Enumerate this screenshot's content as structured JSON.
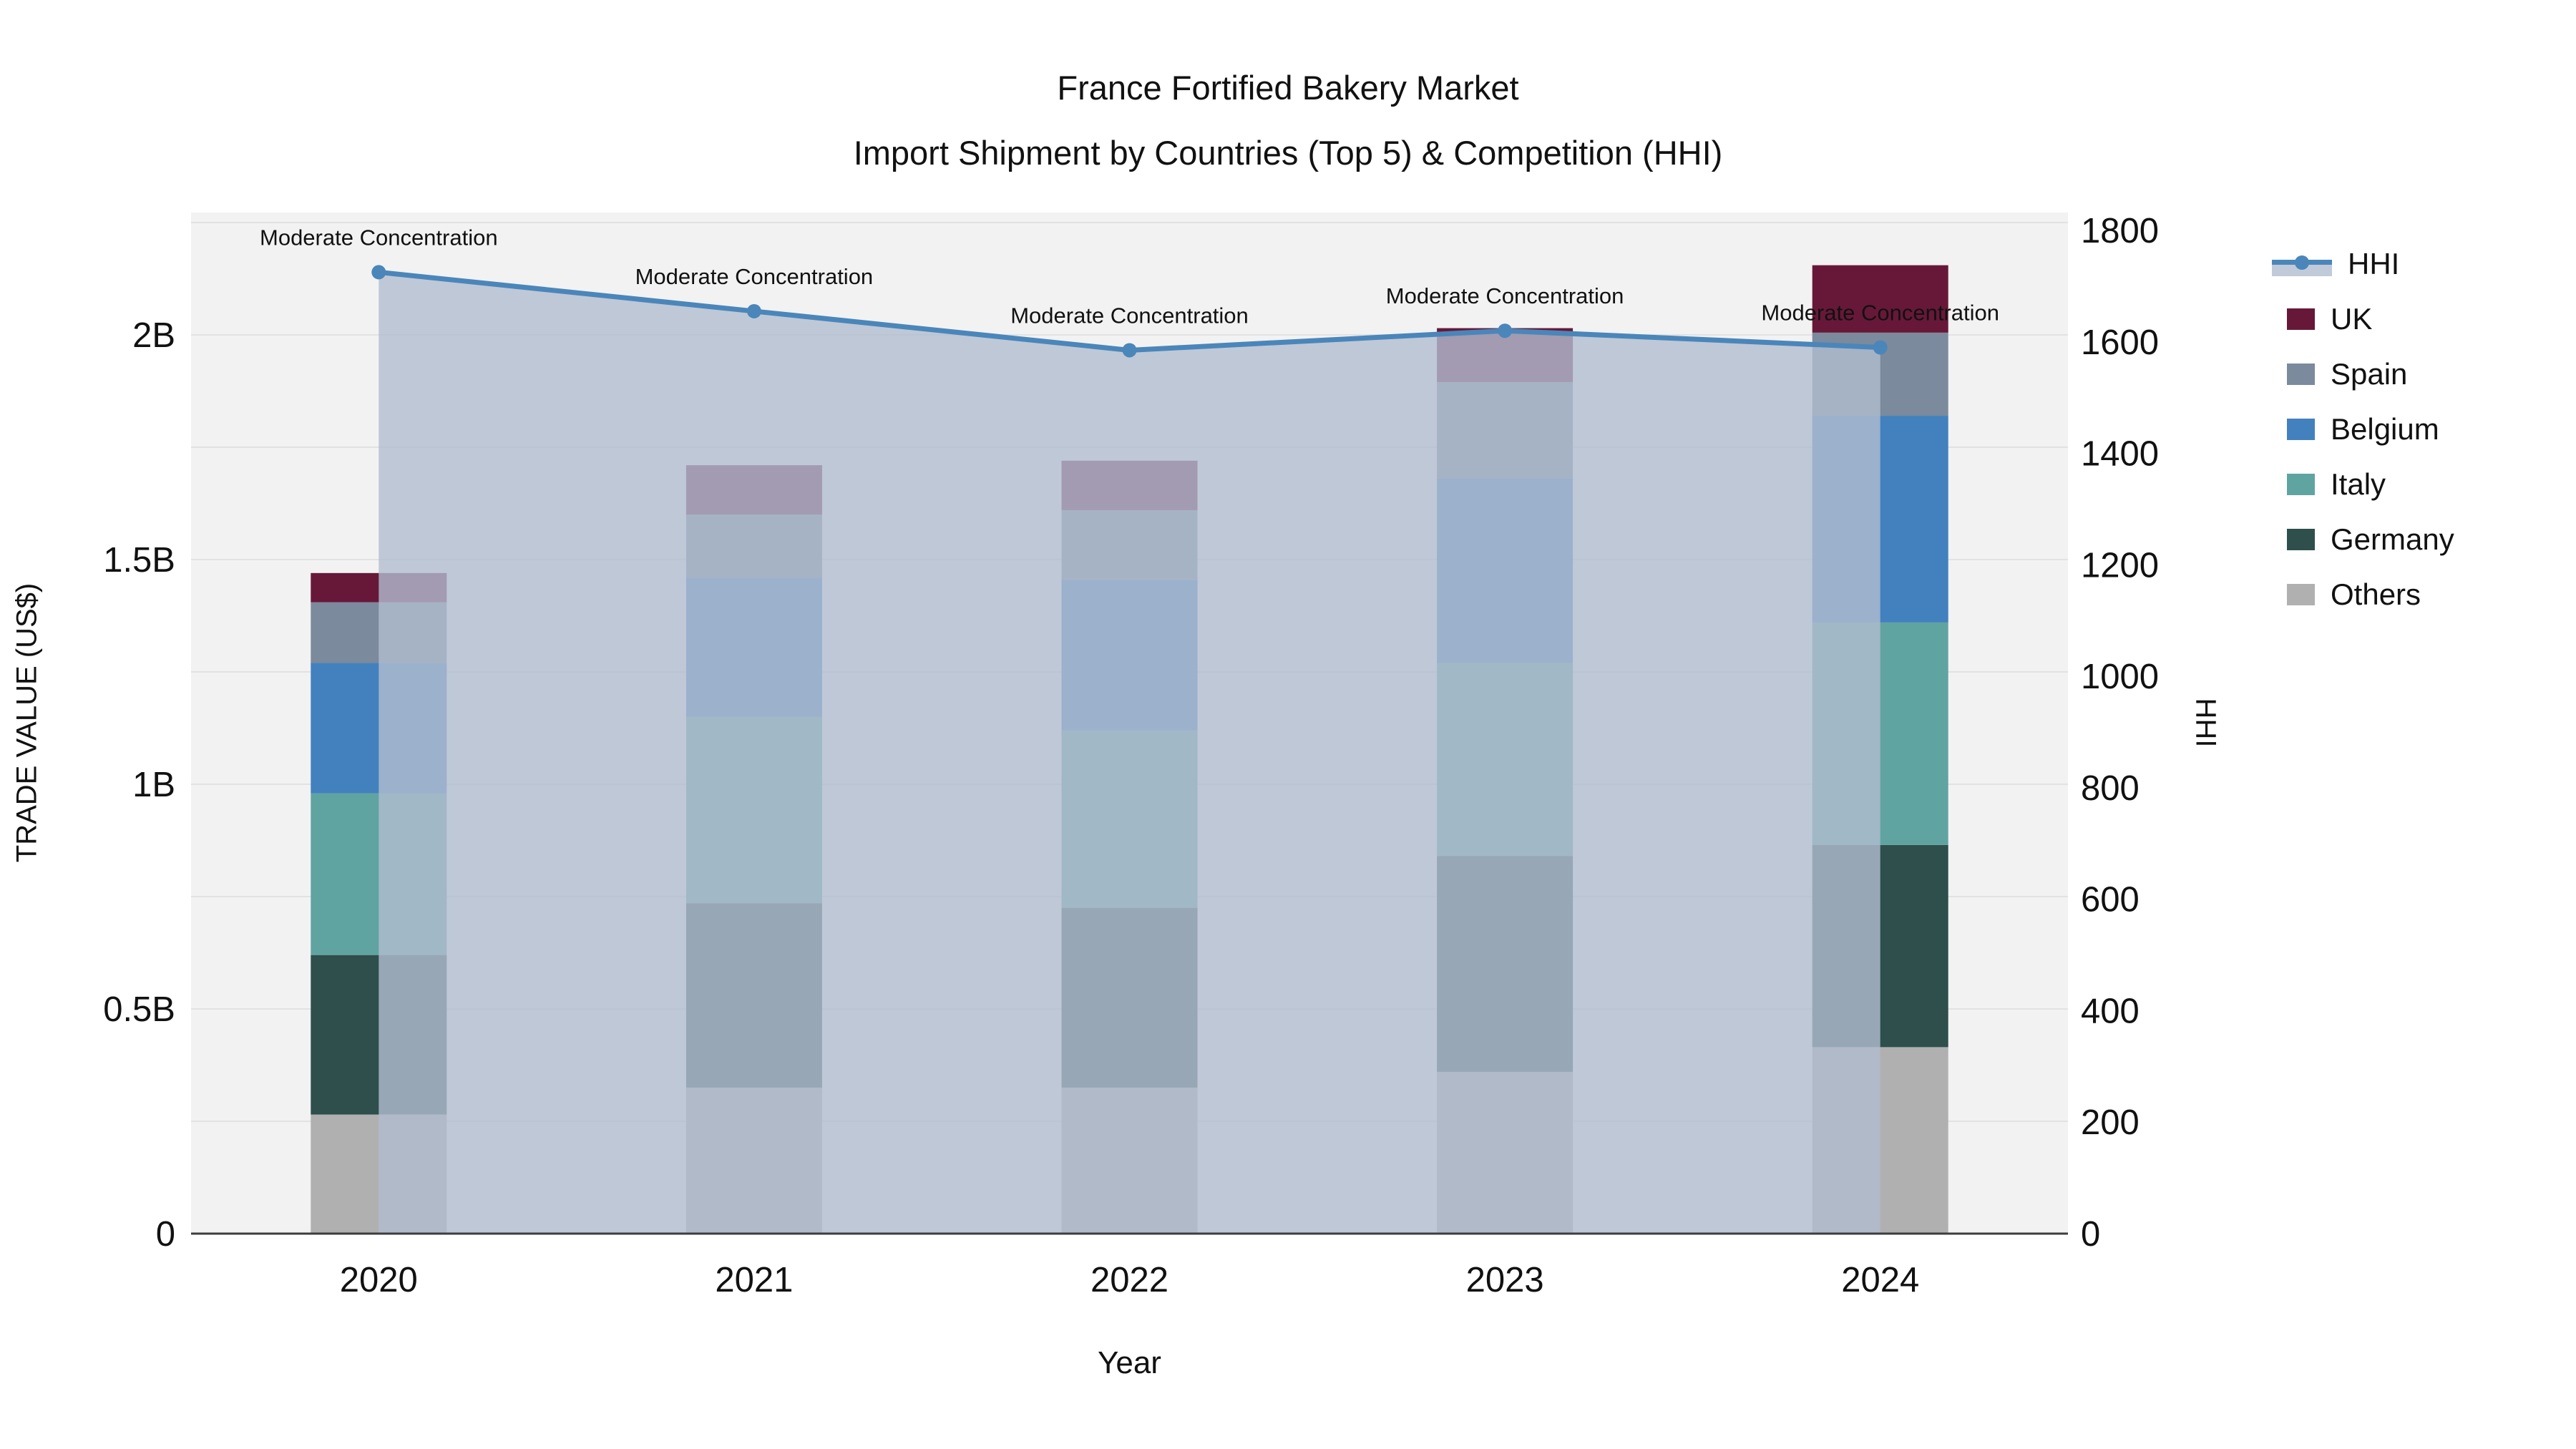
{
  "title": {
    "line1": "France Fortified Bakery Market",
    "line2": "Import Shipment by Countries (Top 5) & Competition (HHI)"
  },
  "axes": {
    "left_label": "TRADE VALUE (US$)",
    "right_label": "HHI",
    "bottom_label": "Year",
    "left_ticks": [
      {
        "label": "0",
        "value": 0
      },
      {
        "label": "0.5B",
        "value": 0.5
      },
      {
        "label": "1B",
        "value": 1.0
      },
      {
        "label": "1.5B",
        "value": 1.5
      },
      {
        "label": "2B",
        "value": 2.0
      }
    ],
    "right_ticks": [
      {
        "label": "0",
        "value": 0
      },
      {
        "label": "200",
        "value": 200
      },
      {
        "label": "400",
        "value": 400
      },
      {
        "label": "600",
        "value": 600
      },
      {
        "label": "800",
        "value": 800
      },
      {
        "label": "1000",
        "value": 1000
      },
      {
        "label": "1200",
        "value": 1200
      },
      {
        "label": "1400",
        "value": 1400
      },
      {
        "label": "1600",
        "value": 1600
      },
      {
        "label": "1800",
        "value": 1800
      }
    ]
  },
  "chart_data": {
    "type": "bar",
    "stacked": true,
    "categories": [
      "2020",
      "2021",
      "2022",
      "2023",
      "2024"
    ],
    "value_unit": "billions US$",
    "series": [
      {
        "name": "Others",
        "color": "#b0b0b0",
        "values": [
          0.265,
          0.325,
          0.325,
          0.36,
          0.415
        ]
      },
      {
        "name": "Germany",
        "color": "#2e4f4c",
        "values": [
          0.355,
          0.41,
          0.4,
          0.48,
          0.45
        ]
      },
      {
        "name": "Italy",
        "color": "#60a4a1",
        "values": [
          0.36,
          0.415,
          0.395,
          0.43,
          0.495
        ]
      },
      {
        "name": "Belgium",
        "color": "#4281be",
        "values": [
          0.29,
          0.31,
          0.335,
          0.41,
          0.46
        ]
      },
      {
        "name": "Spain",
        "color": "#7b8a9c",
        "values": [
          0.135,
          0.14,
          0.155,
          0.215,
          0.185
        ]
      },
      {
        "name": "UK",
        "color": "#671838",
        "values": [
          0.065,
          0.11,
          0.11,
          0.12,
          0.15
        ]
      }
    ],
    "line_series": {
      "name": "HHI",
      "axis": "right",
      "color": "#4a86ba",
      "area_fill": "rgba(178,189,207,0.8)",
      "values": [
        1725,
        1655,
        1585,
        1620,
        1590
      ]
    },
    "annotations": [
      {
        "text": "Moderate Concentration",
        "category": "2020"
      },
      {
        "text": "Moderate Concentration",
        "category": "2021"
      },
      {
        "text": "Moderate Concentration",
        "category": "2022"
      },
      {
        "text": "Moderate Concentration",
        "category": "2023"
      },
      {
        "text": "Moderate Concentration",
        "category": "2024"
      }
    ],
    "ylim_left": [
      0,
      2.27
    ],
    "ylim_right": [
      0,
      1800
    ],
    "grid": true,
    "legend_position": "right",
    "plot_bg": "#f2f2f2",
    "grid_color": "#e2e2e2",
    "axisline_color": "#3d3d3d",
    "text_color": "#111111"
  },
  "legend": {
    "items": [
      {
        "label": "HHI",
        "type": "line",
        "color": "#4a86ba",
        "band": "rgba(178,189,207,0.8)"
      },
      {
        "label": "UK",
        "type": "box",
        "color": "#671838"
      },
      {
        "label": "Spain",
        "type": "box",
        "color": "#7b8a9c"
      },
      {
        "label": "Belgium",
        "type": "box",
        "color": "#4281be"
      },
      {
        "label": "Italy",
        "type": "box",
        "color": "#60a4a1"
      },
      {
        "label": "Germany",
        "type": "box",
        "color": "#2e4f4c"
      },
      {
        "label": "Others",
        "type": "box",
        "color": "#b0b0b0"
      }
    ]
  }
}
